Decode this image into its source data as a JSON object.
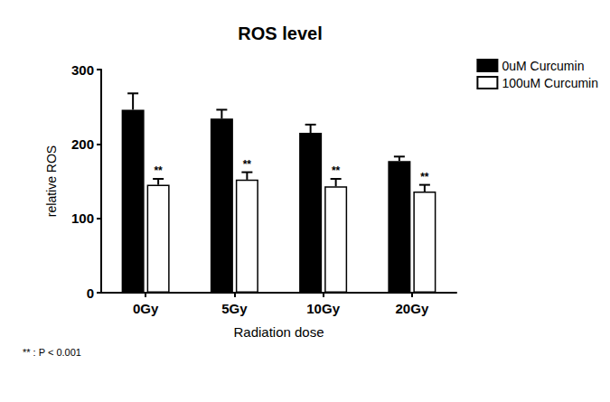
{
  "chart_data": {
    "type": "bar",
    "title": "ROS level",
    "x_label": "Radiation dose",
    "y_label": "relative ROS",
    "categories": [
      "0Gy",
      "5Gy",
      "10Gy",
      "20Gy"
    ],
    "series": [
      {
        "name": "0uM Curcumin",
        "color": "#000000",
        "values": [
          246,
          234,
          215,
          177
        ],
        "errors": [
          22,
          12,
          11,
          6
        ]
      },
      {
        "name": "100uM Curcumin",
        "color": "#ffffff",
        "values": [
          145,
          152,
          143,
          136
        ],
        "errors": [
          8,
          10,
          10,
          9
        ],
        "annotations": [
          "**",
          "**",
          "**",
          "**"
        ]
      }
    ],
    "ylim": [
      0,
      300
    ],
    "yticks": [
      0,
      100,
      200,
      300
    ],
    "grid": false,
    "legend": "upper right",
    "footnote": "** : P < 0.001"
  }
}
